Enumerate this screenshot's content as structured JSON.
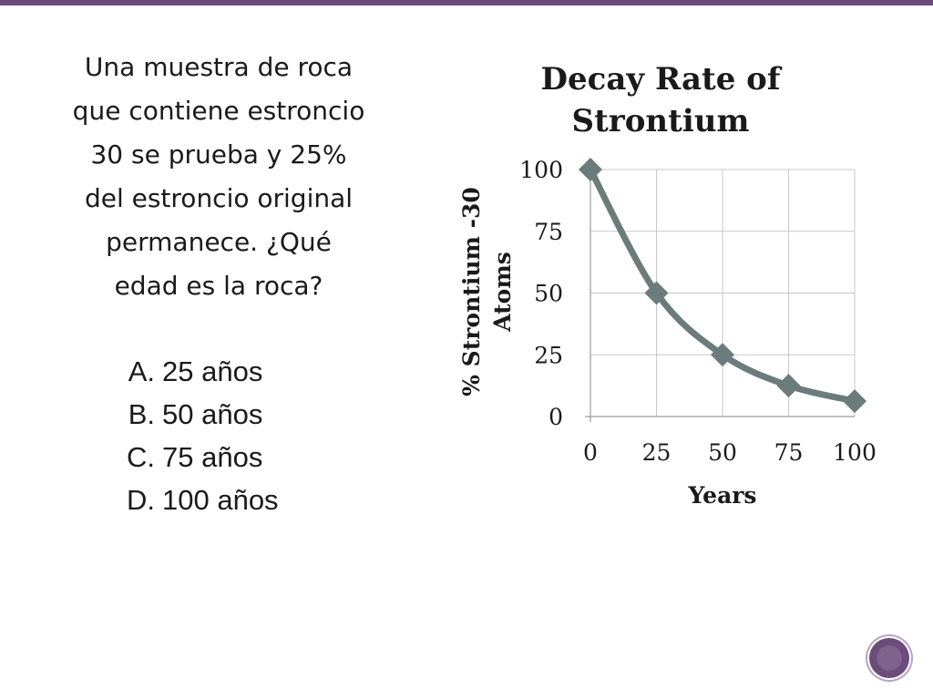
{
  "slide": {
    "question_lines": [
      "Una muestra de roca",
      "que contiene estroncio",
      "30 se prueba y 25%",
      "del estroncio original",
      "permanece. ¿Qué",
      "edad es la roca?"
    ],
    "options": [
      {
        "letter": "A.",
        "text": "25 años"
      },
      {
        "letter": "B.",
        "text": "50 años"
      },
      {
        "letter": "C.",
        "text": "75 años"
      },
      {
        "letter": "D.",
        "text": "100 años"
      }
    ],
    "colors": {
      "series": "#6c7b7b",
      "accent": "#6b4c7a"
    }
  },
  "chart_data": {
    "type": "line",
    "title": "Decay Rate of Strontium",
    "title_lines": [
      "Decay Rate of",
      "Strontium"
    ],
    "xlabel": "Years",
    "ylabel": "% Strontium -30 Atoms",
    "ylabel_lines": [
      "% Strontium -30",
      "Atoms"
    ],
    "x": [
      0,
      25,
      50,
      75,
      100
    ],
    "values": [
      100,
      50,
      25,
      12.5,
      6.25
    ],
    "xticks": [
      0,
      25,
      50,
      75,
      100
    ],
    "yticks": [
      0,
      25,
      50,
      75,
      100
    ],
    "xlim": [
      0,
      100
    ],
    "ylim": [
      0,
      100
    ],
    "grid": true,
    "marker": "diamond",
    "smooth": true
  }
}
